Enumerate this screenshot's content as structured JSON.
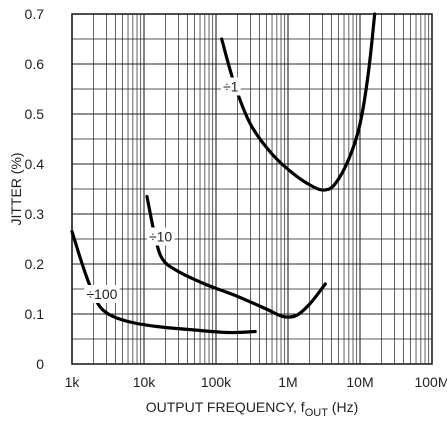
{
  "chart_data": {
    "type": "line",
    "xlabel_main": "OUTPUT FREQUENCY, f",
    "xlabel_sub": "OUT",
    "xlabel_unit": " (Hz)",
    "ylabel": "JITTER (%)",
    "x_scale": "log",
    "xlim": [
      1000,
      100000000
    ],
    "ylim": [
      0,
      0.7
    ],
    "x_ticks": [
      {
        "value": 1000,
        "label": "1k"
      },
      {
        "value": 10000,
        "label": "10k"
      },
      {
        "value": 100000,
        "label": "100k"
      },
      {
        "value": 1000000,
        "label": "1M"
      },
      {
        "value": 10000000,
        "label": "10M"
      },
      {
        "value": 100000000,
        "label": "100M"
      }
    ],
    "y_ticks": [
      {
        "value": 0,
        "label": "0"
      },
      {
        "value": 0.1,
        "label": "0.1"
      },
      {
        "value": 0.2,
        "label": "0.2"
      },
      {
        "value": 0.3,
        "label": "0.3"
      },
      {
        "value": 0.4,
        "label": "0.4"
      },
      {
        "value": 0.5,
        "label": "0.5"
      },
      {
        "value": 0.6,
        "label": "0.6"
      },
      {
        "value": 0.7,
        "label": "0.7"
      }
    ],
    "grid": true,
    "series": [
      {
        "name": "÷1",
        "label_at": [
          160000,
          0.555
        ],
        "points": [
          [
            120000,
            0.65
          ],
          [
            180000,
            0.56
          ],
          [
            300000,
            0.48
          ],
          [
            600000,
            0.42
          ],
          [
            1200000,
            0.38
          ],
          [
            2200000,
            0.355
          ],
          [
            3200000,
            0.348
          ],
          [
            4500000,
            0.36
          ],
          [
            7000000,
            0.41
          ],
          [
            10000000,
            0.48
          ],
          [
            13000000,
            0.58
          ],
          [
            16000000,
            0.7
          ]
        ]
      },
      {
        "name": "÷10",
        "label_at": [
          17000,
          0.255
        ],
        "points": [
          [
            11000,
            0.335
          ],
          [
            14000,
            0.26
          ],
          [
            18000,
            0.21
          ],
          [
            30000,
            0.185
          ],
          [
            70000,
            0.16
          ],
          [
            200000,
            0.135
          ],
          [
            500000,
            0.11
          ],
          [
            850000,
            0.095
          ],
          [
            1300000,
            0.097
          ],
          [
            2000000,
            0.12
          ],
          [
            3300000,
            0.16
          ]
        ]
      },
      {
        "name": "÷100",
        "label_at": [
          2600,
          0.14
        ],
        "points": [
          [
            1000,
            0.265
          ],
          [
            1500,
            0.185
          ],
          [
            2200,
            0.125
          ],
          [
            3200,
            0.1
          ],
          [
            6000,
            0.085
          ],
          [
            15000,
            0.075
          ],
          [
            50000,
            0.068
          ],
          [
            150000,
            0.063
          ],
          [
            350000,
            0.065
          ]
        ]
      }
    ]
  }
}
